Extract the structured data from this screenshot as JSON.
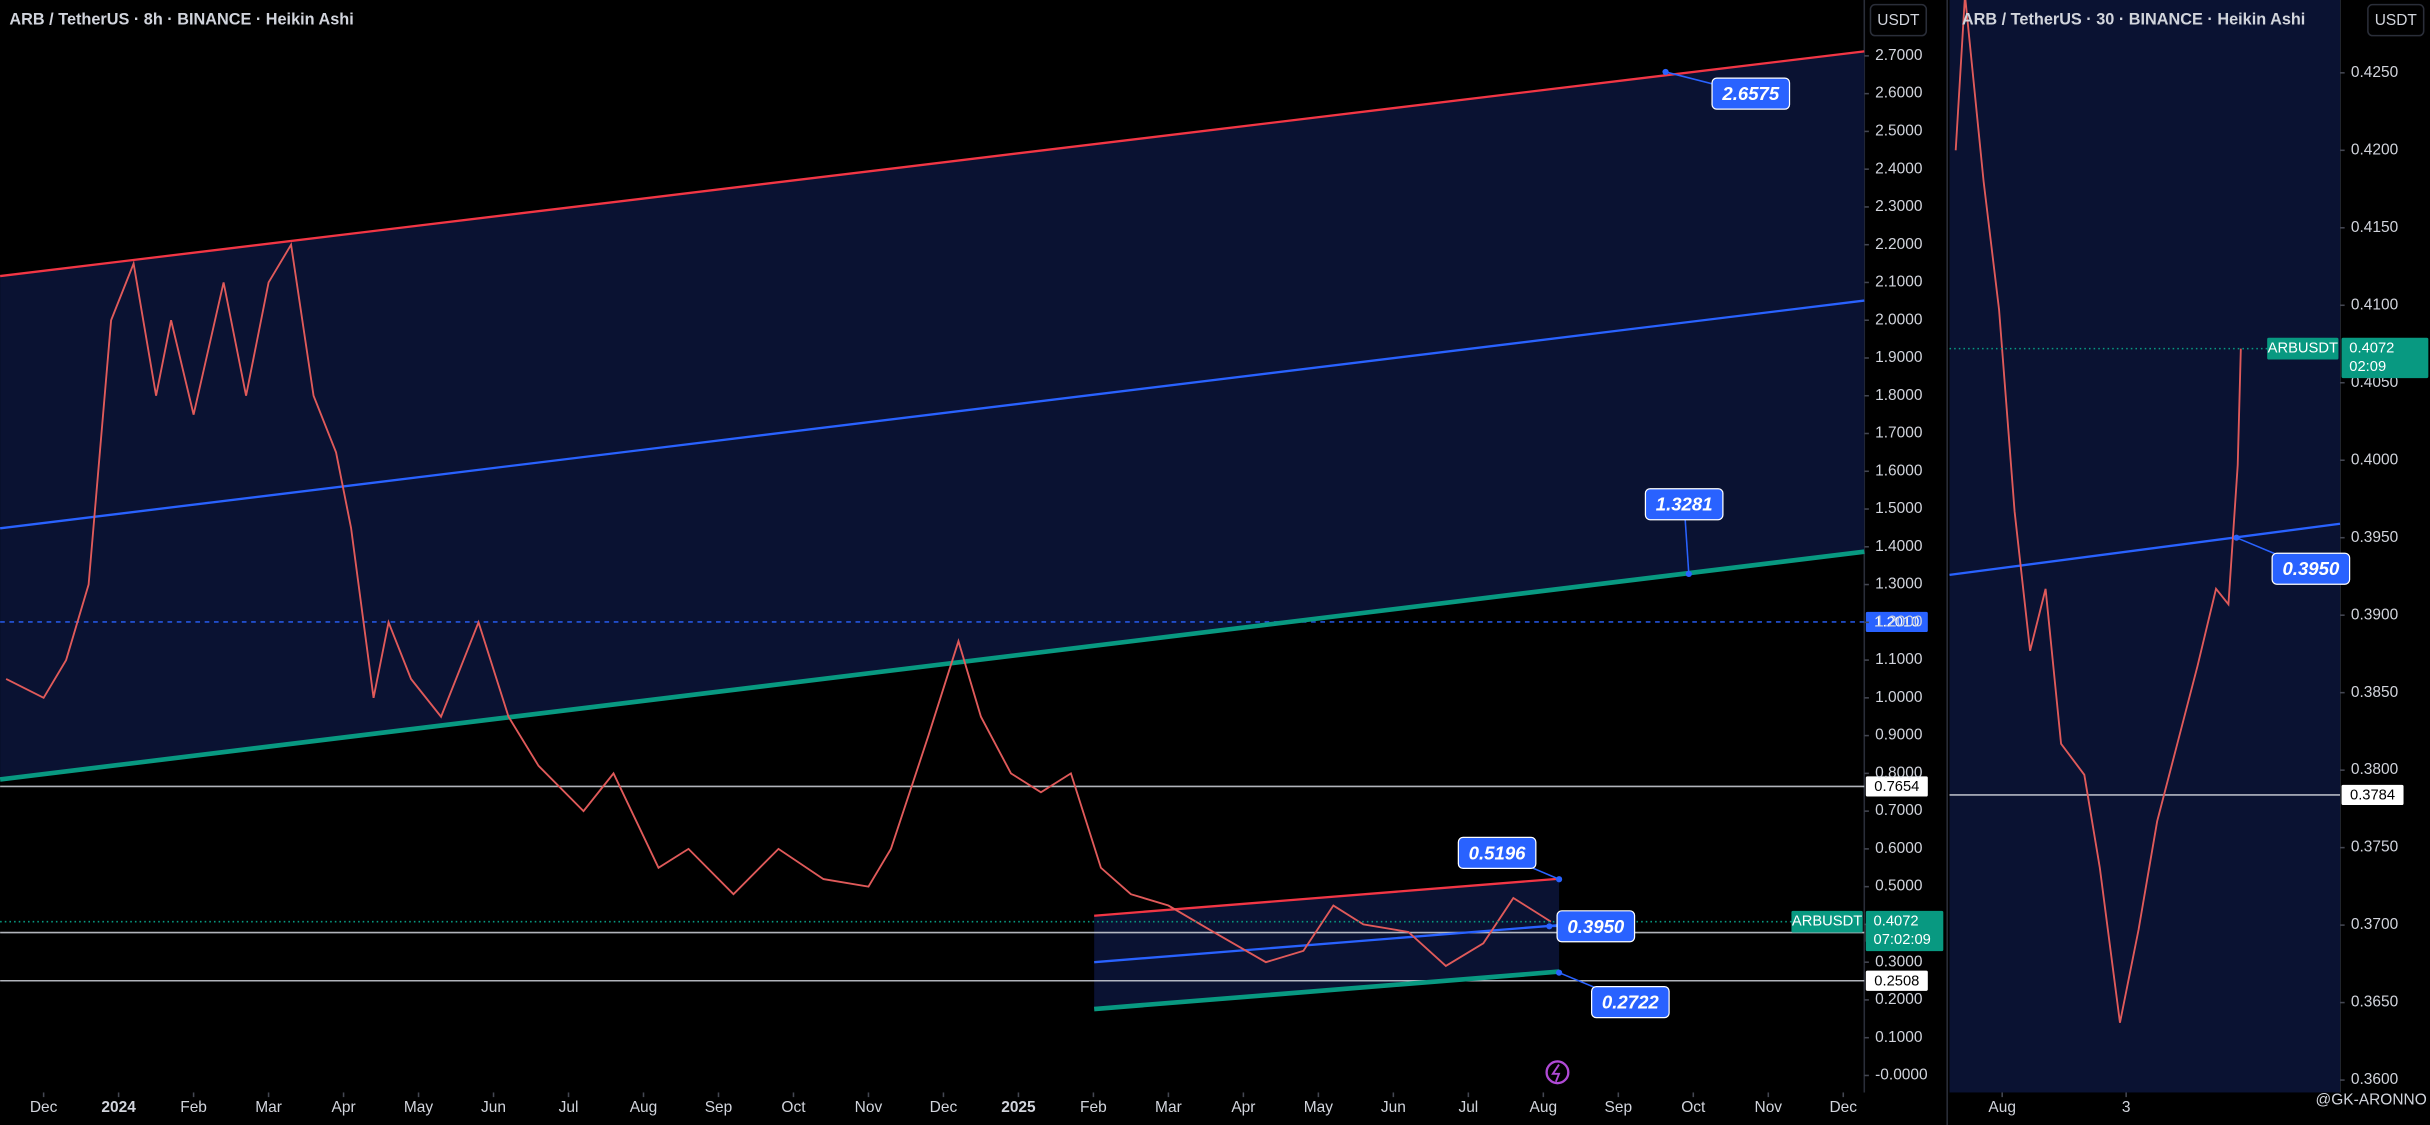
{
  "chart_data": [
    {
      "type": "line",
      "title": "ARB / TetherUS · 8h · BINANCE · Heikin Ashi",
      "currency": "USDT",
      "x": [
        -0.5,
        0,
        0.3,
        0.6,
        0.9,
        1.2,
        1.5,
        1.7,
        2.0,
        2.4,
        2.7,
        3.0,
        3.3,
        3.6,
        3.9,
        4.1,
        4.4,
        4.6,
        4.9,
        5.3,
        5.8,
        6.2,
        6.6,
        7.2,
        7.6,
        8.2,
        8.6,
        9.2,
        9.8,
        10.4,
        11.0,
        11.3,
        11.8,
        12.2,
        12.5,
        12.9,
        13.3,
        13.7,
        14.1,
        14.5,
        15.0,
        15.6,
        16.3,
        16.8,
        17.2,
        17.6,
        18.2,
        18.7,
        19.2,
        19.6,
        20.0,
        20.1
      ],
      "series": [
        {
          "name": "ARBUSDT",
          "color": "#e05a5a",
          "values": [
            1.05,
            1.0,
            1.1,
            1.3,
            2.0,
            2.15,
            1.8,
            2.0,
            1.75,
            2.1,
            1.8,
            2.1,
            2.2,
            1.8,
            1.65,
            1.45,
            1.0,
            1.2,
            1.05,
            0.95,
            1.2,
            0.95,
            0.82,
            0.7,
            0.8,
            0.55,
            0.6,
            0.48,
            0.6,
            0.52,
            0.5,
            0.6,
            0.9,
            1.15,
            0.95,
            0.8,
            0.75,
            0.8,
            0.55,
            0.48,
            0.45,
            0.38,
            0.3,
            0.33,
            0.45,
            0.4,
            0.38,
            0.29,
            0.35,
            0.47,
            0.42,
            0.4072
          ]
        }
      ],
      "last_price": 0.4072,
      "countdown": "07:02:09",
      "last_color": "#089981",
      "xlim": [
        -0.58,
        24.28
      ],
      "xticks": [
        {
          "value": 0,
          "label": "Dec"
        },
        {
          "value": 1,
          "label": "2024"
        },
        {
          "value": 2,
          "label": "Feb"
        },
        {
          "value": 3,
          "label": "Mar"
        },
        {
          "value": 4,
          "label": "Apr"
        },
        {
          "value": 5,
          "label": "May"
        },
        {
          "value": 6,
          "label": "Jun"
        },
        {
          "value": 7,
          "label": "Jul"
        },
        {
          "value": 8,
          "label": "Aug"
        },
        {
          "value": 9,
          "label": "Sep"
        },
        {
          "value": 10,
          "label": "Oct"
        },
        {
          "value": 11,
          "label": "Nov"
        },
        {
          "value": 12,
          "label": "Dec"
        },
        {
          "value": 13,
          "label": "2025"
        },
        {
          "value": 14,
          "label": "Feb"
        },
        {
          "value": 15,
          "label": "Mar"
        },
        {
          "value": 16,
          "label": "Apr"
        },
        {
          "value": 17,
          "label": "May"
        },
        {
          "value": 18,
          "label": "Jun"
        },
        {
          "value": 19,
          "label": "Jul"
        },
        {
          "value": 20,
          "label": "Aug"
        },
        {
          "value": 21,
          "label": "Sep"
        },
        {
          "value": 22,
          "label": "Oct"
        },
        {
          "value": 23,
          "label": "Nov"
        },
        {
          "value": 24,
          "label": "Dec"
        }
      ],
      "ylim": [
        -0.045,
        2.848
      ],
      "yticks": [
        {
          "value": 0,
          "label": "-0.0000"
        },
        {
          "value": 0.1,
          "label": "0.1000"
        },
        {
          "value": 0.2,
          "label": "0.2000"
        },
        {
          "value": 0.3,
          "label": "0.3000"
        },
        {
          "value": 0.4,
          "label": "0.4000"
        },
        {
          "value": 0.5,
          "label": "0.5000"
        },
        {
          "value": 0.6,
          "label": "0.6000"
        },
        {
          "value": 0.7,
          "label": "0.7000"
        },
        {
          "value": 0.8,
          "label": "0.8000"
        },
        {
          "value": 0.9,
          "label": "0.9000"
        },
        {
          "value": 1.0,
          "label": "1.0000"
        },
        {
          "value": 1.1,
          "label": "1.1000"
        },
        {
          "value": 1.2,
          "label": "1.2000"
        },
        {
          "value": 1.3,
          "label": "1.3000"
        },
        {
          "value": 1.4,
          "label": "1.4000"
        },
        {
          "value": 1.5,
          "label": "1.5000"
        },
        {
          "value": 1.6,
          "label": "1.6000"
        },
        {
          "value": 1.7,
          "label": "1.7000"
        },
        {
          "value": 1.8,
          "label": "1.8000"
        },
        {
          "value": 1.9,
          "label": "1.9000"
        },
        {
          "value": 2.0,
          "label": "2.0000"
        },
        {
          "value": 2.1,
          "label": "2.1000"
        },
        {
          "value": 2.2,
          "label": "2.2000"
        },
        {
          "value": 2.3,
          "label": "2.3000"
        },
        {
          "value": 2.4,
          "label": "2.4000"
        },
        {
          "value": 2.5,
          "label": "2.5000"
        },
        {
          "value": 2.6,
          "label": "2.6000"
        },
        {
          "value": 2.7,
          "label": "2.7000"
        }
      ],
      "grid": false,
      "channels": [
        {
          "fill": "#0a1232",
          "lines": [
            {
              "color": "#f23645",
              "width": 1.5,
              "x": [
                -0.58,
                24.28
              ],
              "values": [
                2.117,
                2.712
              ]
            },
            {
              "color": "#2962ff",
              "width": 1.5,
              "x": [
                -0.58,
                24.28
              ],
              "values": [
                1.449,
                2.052
              ]
            },
            {
              "color": "#089981",
              "width": 3,
              "x": [
                -0.58,
                24.28
              ],
              "values": [
                0.784,
                1.387
              ]
            }
          ]
        },
        {
          "fill": "#0a1232",
          "lines": [
            {
              "color": "#f23645",
              "width": 1.5,
              "x": [
                14.01,
                20.21
              ],
              "values": [
                0.423,
                0.521
              ]
            },
            {
              "color": "#2962ff",
              "width": 1.5,
              "x": [
                14.01,
                20.21
              ],
              "values": [
                0.3,
                0.398
              ]
            },
            {
              "color": "#089981",
              "width": 3,
              "x": [
                14.01,
                20.21
              ],
              "values": [
                0.176,
                0.275
              ]
            }
          ]
        }
      ],
      "horizontal_lines": [
        {
          "value": 1.201,
          "label": "1.2010",
          "color": "#2962ff",
          "dashed": true
        },
        {
          "value": 0.7654,
          "color": "#d1d4dc"
        },
        {
          "value": 0.3784,
          "color": "#d1d4dc"
        },
        {
          "value": 0.2508,
          "color": "#d1d4dc"
        }
      ],
      "annotations": [
        {
          "x": 21.63,
          "value": 2.6575
        },
        {
          "x": 21.94,
          "value": 1.3281
        },
        {
          "x": 20.21,
          "value": 0.5196
        },
        {
          "x": 20.08,
          "value": 0.395,
          "label": "0.3950"
        },
        {
          "x": 20.21,
          "value": 0.2722
        }
      ]
    },
    {
      "type": "line",
      "title": "ARB / TetherUS · 30 · BINANCE · Heikin Ashi",
      "currency": "USDT",
      "background": "#0a1232",
      "x": [
        0.25,
        0.4,
        0.7,
        0.95,
        1.2,
        1.45,
        1.7,
        1.95,
        2.325,
        2.575,
        2.9,
        3.2,
        3.5,
        3.825,
        4.15,
        4.45,
        4.65,
        4.8,
        4.85
      ],
      "series": [
        {
          "name": "ARBUSDT",
          "color": "#e05a5a",
          "values": [
            0.42,
            0.43,
            0.418,
            0.4097,
            0.3967,
            0.3877,
            0.3917,
            0.3817,
            0.3797,
            0.3737,
            0.3637,
            0.3697,
            0.3767,
            0.3817,
            0.3867,
            0.3917,
            0.3907,
            0.3997,
            0.4072
          ]
        }
      ],
      "last_price": 0.4072,
      "countdown": "02:09",
      "last_color": "#089981",
      "xlim": [
        0.15,
        6.45
      ],
      "xticks": [
        {
          "value": 1,
          "label": "Aug"
        },
        3
      ],
      "ylim": [
        0.3592,
        0.4297
      ],
      "yticks": [
        {
          "value": 0.36,
          "label": "0.3600"
        },
        {
          "value": 0.365,
          "label": "0.3650"
        },
        {
          "value": 0.37,
          "label": "0.3700"
        },
        {
          "value": 0.375,
          "label": "0.3750"
        },
        {
          "value": 0.38,
          "label": "0.3800"
        },
        {
          "value": 0.385,
          "label": "0.3850"
        },
        {
          "value": 0.39,
          "label": "0.3900"
        },
        {
          "value": 0.395,
          "label": "0.3950"
        },
        {
          "value": 0.4,
          "label": "0.4000"
        },
        {
          "value": 0.405,
          "label": "0.4050"
        },
        {
          "value": 0.41,
          "label": "0.4100"
        },
        {
          "value": 0.415,
          "label": "0.4150"
        },
        {
          "value": 0.42,
          "label": "0.4200"
        },
        {
          "value": 0.425,
          "label": "0.4250"
        }
      ],
      "grid": false,
      "channels": [
        {
          "lines": [
            {
              "color": "#2962ff",
              "width": 1.5,
              "x": [
                0.15,
                6.45
              ],
              "values": [
                0.3926,
                0.3959
              ]
            }
          ]
        }
      ],
      "horizontal_lines": [
        {
          "value": 0.3784,
          "color": "#d1d4dc"
        }
      ],
      "annotations": [
        {
          "x": 4.78,
          "value": 0.395,
          "label": "0.3950"
        }
      ],
      "watermark": "@GK-ARONNO"
    }
  ]
}
